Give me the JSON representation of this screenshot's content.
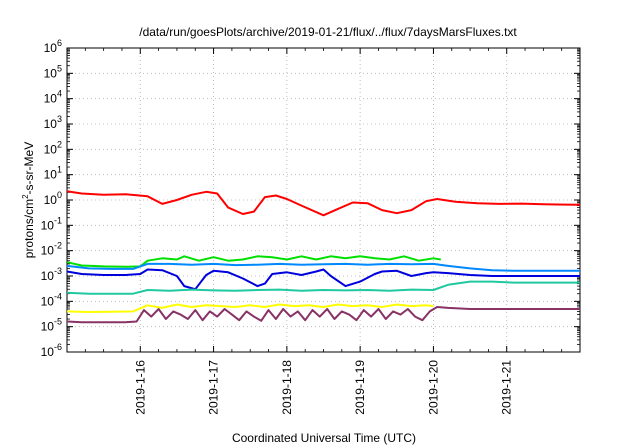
{
  "chart_data": {
    "type": "line",
    "title": "/data/run/goesPlots/archive/2019-01-21/flux/../flux/7daysMarsFluxes.txt",
    "xlabel": "Coordinated Universal Time (UTC)",
    "ylabel": {
      "base": "protons/cm",
      "sup": "2",
      "rest": "-s-sr-MeV"
    },
    "y_scale": "log",
    "ylim": [
      1e-06,
      1000000.0
    ],
    "y_ticks": [
      {
        "value": -6,
        "base": "10",
        "exp": "-6"
      },
      {
        "value": -5,
        "base": "10",
        "exp": "-5"
      },
      {
        "value": -4,
        "base": "10",
        "exp": "-4"
      },
      {
        "value": -3,
        "base": "10",
        "exp": "-3"
      },
      {
        "value": -2,
        "base": "10",
        "exp": "-2"
      },
      {
        "value": -1,
        "base": "10",
        "exp": "-1"
      },
      {
        "value": 0,
        "base": "10",
        "exp": "0"
      },
      {
        "value": 1,
        "base": "10",
        "exp": "1"
      },
      {
        "value": 2,
        "base": "10",
        "exp": "2"
      },
      {
        "value": 3,
        "base": "10",
        "exp": "3"
      },
      {
        "value": 4,
        "base": "10",
        "exp": "4"
      },
      {
        "value": 5,
        "base": "10",
        "exp": "5"
      },
      {
        "value": 6,
        "base": "10",
        "exp": "6"
      }
    ],
    "xlim": [
      15.0,
      22.0
    ],
    "x_ticks": [
      {
        "value": 16,
        "label": "2019-1-16"
      },
      {
        "value": 17,
        "label": "2019-1-17"
      },
      {
        "value": 18,
        "label": "2019-1-18"
      },
      {
        "value": 19,
        "label": "2019-1-19"
      },
      {
        "value": 20,
        "label": "2019-1-20"
      },
      {
        "value": 21,
        "label": "2019-1-21"
      }
    ],
    "grid": true,
    "series": [
      {
        "color": "#ff0000",
        "x": [
          15.0,
          15.2,
          15.5,
          15.8,
          16.1,
          16.3,
          16.5,
          16.7,
          16.9,
          17.05,
          17.2,
          17.4,
          17.55,
          17.7,
          17.85,
          18.0,
          18.2,
          18.5,
          18.7,
          18.9,
          19.1,
          19.3,
          19.5,
          19.7,
          19.9,
          20.05,
          20.3,
          20.6,
          20.9,
          21.2,
          21.5,
          21.8,
          22.0
        ],
        "y": [
          2.2,
          1.8,
          1.6,
          1.7,
          1.4,
          0.7,
          1.0,
          1.6,
          2.1,
          1.8,
          0.5,
          0.28,
          0.35,
          1.3,
          1.5,
          1.1,
          0.6,
          0.25,
          0.45,
          0.8,
          0.75,
          0.4,
          0.3,
          0.4,
          0.9,
          1.1,
          0.85,
          0.75,
          0.7,
          0.72,
          0.68,
          0.66,
          0.65
        ]
      },
      {
        "color": "#00e000",
        "x": [
          15.0,
          15.2,
          15.5,
          15.8,
          16.0,
          16.1,
          16.3,
          16.5,
          16.6,
          16.8,
          17.0,
          17.2,
          17.4,
          17.6,
          17.8,
          18.0,
          18.2,
          18.4,
          18.6,
          18.8,
          19.0,
          19.2,
          19.4,
          19.6,
          19.8,
          20.0,
          20.1
        ],
        "y": [
          0.0035,
          0.0026,
          0.0024,
          0.0023,
          0.0024,
          0.004,
          0.005,
          0.0045,
          0.006,
          0.004,
          0.0055,
          0.004,
          0.0045,
          0.006,
          0.0055,
          0.0045,
          0.006,
          0.0045,
          0.006,
          0.005,
          0.006,
          0.005,
          0.0045,
          0.006,
          0.004,
          0.005,
          0.0045
        ]
      },
      {
        "color": "#0000dd",
        "x": [
          15.0,
          15.2,
          15.5,
          15.8,
          16.0,
          16.1,
          16.3,
          16.5,
          16.6,
          16.75,
          16.9,
          17.0,
          17.2,
          17.4,
          17.6,
          17.7,
          17.8,
          18.0,
          18.2,
          18.4,
          18.5,
          18.6,
          18.8,
          19.0,
          19.2,
          19.3,
          19.5,
          19.7,
          19.9,
          20.0,
          20.2,
          20.5,
          20.8,
          21.1,
          21.5,
          22.0
        ],
        "y": [
          0.0015,
          0.0012,
          0.0011,
          0.0011,
          0.0012,
          0.0018,
          0.0017,
          0.001,
          0.0004,
          0.0003,
          0.0011,
          0.0016,
          0.0014,
          0.0008,
          0.0004,
          0.0005,
          0.0012,
          0.0014,
          0.0011,
          0.0015,
          0.0018,
          0.001,
          0.0004,
          0.0006,
          0.0012,
          0.0015,
          0.0016,
          0.001,
          0.0013,
          0.0014,
          0.0013,
          0.0011,
          0.001,
          0.001,
          0.001,
          0.001
        ]
      },
      {
        "color": "#0088ff",
        "x": [
          15.0,
          15.3,
          15.6,
          15.9,
          16.1,
          16.4,
          16.7,
          17.0,
          17.3,
          17.6,
          17.9,
          18.2,
          18.5,
          18.8,
          19.1,
          19.4,
          19.7,
          20.0,
          20.2,
          20.5,
          20.8,
          21.1,
          21.5,
          22.0
        ],
        "y": [
          0.0025,
          0.002,
          0.0019,
          0.0019,
          0.003,
          0.003,
          0.0028,
          0.003,
          0.0027,
          0.0028,
          0.003,
          0.0028,
          0.0029,
          0.003,
          0.0028,
          0.003,
          0.0029,
          0.003,
          0.0025,
          0.002,
          0.0017,
          0.0016,
          0.0016,
          0.0016
        ]
      },
      {
        "color": "#20c8a0",
        "x": [
          15.0,
          15.3,
          15.6,
          15.9,
          16.1,
          16.4,
          16.7,
          17.0,
          17.3,
          17.6,
          17.9,
          18.2,
          18.5,
          18.8,
          19.1,
          19.4,
          19.7,
          20.0,
          20.2,
          20.5,
          20.8,
          21.1,
          21.5,
          22.0
        ],
        "y": [
          0.00022,
          0.0002,
          0.0002,
          0.0002,
          0.00028,
          0.00026,
          0.00029,
          0.00027,
          0.00026,
          0.00028,
          0.00029,
          0.00026,
          0.00028,
          0.00027,
          0.00028,
          0.00026,
          0.00029,
          0.00028,
          0.00045,
          0.0006,
          0.0006,
          0.00055,
          0.00055,
          0.00055
        ]
      },
      {
        "color": "#ffff00",
        "x": [
          15.0,
          15.3,
          15.6,
          15.9,
          16.1,
          16.3,
          16.5,
          16.7,
          16.9,
          17.1,
          17.3,
          17.5,
          17.7,
          17.9,
          18.1,
          18.3,
          18.5,
          18.7,
          18.9,
          19.1,
          19.3,
          19.5,
          19.7,
          19.9,
          20.0
        ],
        "y": [
          4e-05,
          3.8e-05,
          3.9e-05,
          4e-05,
          7e-05,
          5.5e-05,
          7.5e-05,
          6e-05,
          7e-05,
          6.5e-05,
          6e-05,
          7e-05,
          6e-05,
          7.5e-05,
          6.5e-05,
          7e-05,
          6e-05,
          7.5e-05,
          6.5e-05,
          7e-05,
          6e-05,
          7.5e-05,
          6.5e-05,
          7e-05,
          6.5e-05
        ]
      },
      {
        "color": "#883366",
        "x": [
          15.0,
          15.2,
          15.5,
          15.8,
          15.95,
          16.05,
          16.15,
          16.25,
          16.35,
          16.45,
          16.55,
          16.65,
          16.75,
          16.85,
          16.95,
          17.05,
          17.15,
          17.25,
          17.35,
          17.45,
          17.55,
          17.65,
          17.75,
          17.85,
          17.95,
          18.05,
          18.15,
          18.25,
          18.35,
          18.45,
          18.55,
          18.65,
          18.75,
          18.85,
          18.95,
          19.05,
          19.15,
          19.25,
          19.35,
          19.45,
          19.55,
          19.65,
          19.75,
          19.85,
          19.95,
          20.05,
          20.2,
          20.5,
          20.8,
          21.1,
          21.5,
          22.0
        ],
        "y": [
          1.6e-05,
          1.5e-05,
          1.5e-05,
          1.5e-05,
          1.6e-05,
          4.5e-05,
          2.5e-05,
          5e-05,
          2e-05,
          4e-05,
          3e-05,
          2e-05,
          4.5e-05,
          1.8e-05,
          4e-05,
          2.5e-05,
          5e-05,
          3e-05,
          1.8e-05,
          4e-05,
          2.5e-05,
          1.7e-05,
          4.5e-05,
          2e-05,
          5e-05,
          2.5e-05,
          4e-05,
          1.8e-05,
          4.5e-05,
          2.5e-05,
          5e-05,
          2e-05,
          4e-05,
          3e-05,
          1.8e-05,
          4.5e-05,
          2.5e-05,
          5e-05,
          2e-05,
          4e-05,
          3e-05,
          5e-05,
          2.5e-05,
          1.8e-05,
          4e-05,
          6e-05,
          5.5e-05,
          5e-05,
          5e-05,
          5e-05,
          5e-05,
          5e-05
        ]
      }
    ]
  }
}
